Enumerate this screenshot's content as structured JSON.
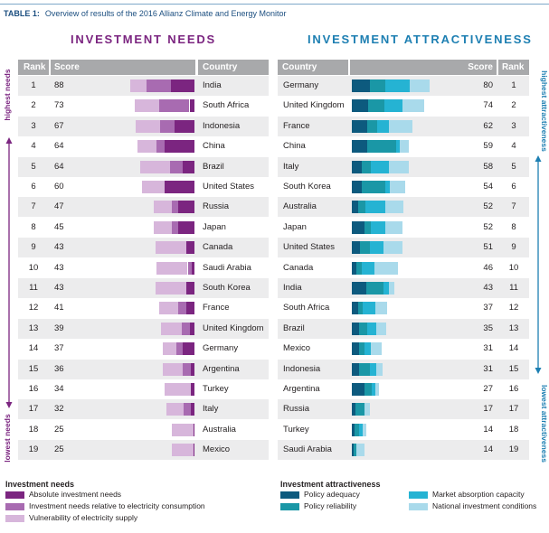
{
  "caption": {
    "label": "TABLE 1:",
    "text": "Overview of results of the 2016 Allianz Climate and Energy Monitor"
  },
  "colors": {
    "needs": [
      "#7b2580",
      "#a86bb1",
      "#d7b6db"
    ],
    "attractiveness": [
      "#0d5a7e",
      "#1a97a6",
      "#25b3d3",
      "#a9daeb"
    ],
    "header_bg": "#a8a9ab",
    "row_band": "#ececed",
    "needs_accent": "#7b2580",
    "attr_accent": "#1d7fb2"
  },
  "needs": {
    "title": "INVESTMENT NEEDS",
    "headers": {
      "rank": "Rank",
      "score": "Score",
      "country": "Country"
    },
    "side_top": "highest needs",
    "side_bottom": "lowest needs"
  },
  "attractiveness": {
    "title": "INVESTMENT ATTRACTIVENESS",
    "headers": {
      "country": "Country",
      "score": "Score",
      "rank": "Rank"
    },
    "side_top": "highest attractiveness",
    "side_bottom": "lowest attractiveness"
  },
  "legend": {
    "needs_title": "Investment needs",
    "needs_items": [
      "Absolute investment needs",
      "Investment needs relative to electricity consumption",
      "Vulnerability of electricity supply"
    ],
    "attr_title": "Investment attractiveness",
    "attr_items": [
      "Policy adequacy",
      "Policy reliability",
      "Market absorption capacity",
      "National investment conditions"
    ]
  },
  "chart_data": [
    {
      "type": "bar",
      "title": "INVESTMENT NEEDS",
      "orientation": "horizontal-stacked",
      "series_names": [
        "Absolute investment needs",
        "Investment needs relative to electricity consumption",
        "Vulnerability of electricity supply"
      ],
      "rows": [
        {
          "rank": 1,
          "score": 88,
          "country": "India",
          "segments": [
            38,
            40,
            27
          ]
        },
        {
          "rank": 2,
          "score": 73,
          "country": "South Africa",
          "segments": [
            8,
            49,
            40
          ]
        },
        {
          "rank": 3,
          "score": 67,
          "country": "Indonesia",
          "segments": [
            32,
            24,
            40
          ]
        },
        {
          "rank": 4,
          "score": 64,
          "country": "China",
          "segments": [
            48,
            14,
            30
          ]
        },
        {
          "rank": 5,
          "score": 64,
          "country": "Brazil",
          "segments": [
            19,
            21,
            48
          ]
        },
        {
          "rank": 6,
          "score": 60,
          "country": "United States",
          "segments": [
            48,
            0,
            37
          ]
        },
        {
          "rank": 7,
          "score": 47,
          "country": "Russia",
          "segments": [
            26,
            11,
            29
          ]
        },
        {
          "rank": 8,
          "score": 45,
          "country": "Japan",
          "segments": [
            27,
            10,
            29
          ]
        },
        {
          "rank": 9,
          "score": 43,
          "country": "Canada",
          "segments": [
            13,
            0,
            50
          ]
        },
        {
          "rank": 10,
          "score": 43,
          "country": "Saudi Arabia",
          "segments": [
            5,
            6,
            51
          ]
        },
        {
          "rank": 11,
          "score": 43,
          "country": "South Korea",
          "segments": [
            13,
            0,
            50
          ]
        },
        {
          "rank": 12,
          "score": 41,
          "country": "France",
          "segments": [
            13,
            13,
            31
          ]
        },
        {
          "rank": 13,
          "score": 39,
          "country": "United Kingdom",
          "segments": [
            8,
            12,
            34
          ]
        },
        {
          "rank": 14,
          "score": 37,
          "country": "Germany",
          "segments": [
            19,
            11,
            21
          ]
        },
        {
          "rank": 15,
          "score": 36,
          "country": "Argentina",
          "segments": [
            6,
            13,
            32
          ]
        },
        {
          "rank": 16,
          "score": 34,
          "country": "Turkey",
          "segments": [
            6,
            0,
            43
          ]
        },
        {
          "rank": 17,
          "score": 32,
          "country": "Italy",
          "segments": [
            6,
            11,
            29
          ]
        },
        {
          "rank": 18,
          "score": 25,
          "country": "Australia",
          "segments": [
            1,
            0,
            36
          ]
        },
        {
          "rank": 19,
          "score": 25,
          "country": "Mexico",
          "segments": [
            2,
            0,
            35
          ]
        }
      ]
    },
    {
      "type": "bar",
      "title": "INVESTMENT ATTRACTIVENESS",
      "orientation": "horizontal-stacked",
      "series_names": [
        "Policy adequacy",
        "Policy reliability",
        "Market absorption capacity",
        "National investment conditions"
      ],
      "rows": [
        {
          "country": "Germany",
          "score": 80,
          "rank": 1,
          "segments": [
            27,
            22,
            36,
            30
          ]
        },
        {
          "country": "United Kingdom",
          "score": 74,
          "rank": 2,
          "segments": [
            24,
            24,
            26,
            32
          ]
        },
        {
          "country": "France",
          "score": 62,
          "rank": 3,
          "segments": [
            22,
            15,
            18,
            34
          ]
        },
        {
          "country": "China",
          "score": 59,
          "rank": 4,
          "segments": [
            23,
            42,
            5,
            14
          ]
        },
        {
          "country": "Italy",
          "score": 58,
          "rank": 5,
          "segments": [
            15,
            13,
            27,
            29
          ]
        },
        {
          "country": "South Korea",
          "score": 54,
          "rank": 6,
          "segments": [
            15,
            34,
            7,
            23
          ]
        },
        {
          "country": "Australia",
          "score": 52,
          "rank": 7,
          "segments": [
            9,
            11,
            29,
            27
          ]
        },
        {
          "country": "Japan",
          "score": 52,
          "rank": 8,
          "segments": [
            18,
            10,
            21,
            26
          ]
        },
        {
          "country": "United States",
          "score": 51,
          "rank": 9,
          "segments": [
            12,
            15,
            19,
            28
          ]
        },
        {
          "country": "Canada",
          "score": 46,
          "rank": 10,
          "segments": [
            6,
            8,
            19,
            35
          ]
        },
        {
          "country": "India",
          "score": 43,
          "rank": 11,
          "segments": [
            21,
            26,
            8,
            7
          ]
        },
        {
          "country": "South Africa",
          "score": 37,
          "rank": 12,
          "segments": [
            9,
            7,
            19,
            17
          ]
        },
        {
          "country": "Brazil",
          "score": 35,
          "rank": 13,
          "segments": [
            11,
            11,
            14,
            14
          ]
        },
        {
          "country": "Mexico",
          "score": 31,
          "rank": 14,
          "segments": [
            10,
            8,
            10,
            16
          ]
        },
        {
          "country": "Indonesia",
          "score": 31,
          "rank": 15,
          "segments": [
            10,
            16,
            10,
            9
          ]
        },
        {
          "country": "Argentina",
          "score": 27,
          "rank": 16,
          "segments": [
            19,
            10,
            5,
            6
          ]
        },
        {
          "country": "Russia",
          "score": 17,
          "rank": 17,
          "segments": [
            5,
            14,
            0,
            7
          ]
        },
        {
          "country": "Turkey",
          "score": 14,
          "rank": 18,
          "segments": [
            4,
            6,
            6,
            5
          ]
        },
        {
          "country": "Saudi Arabia",
          "score": 14,
          "rank": 19,
          "segments": [
            2,
            5,
            0,
            12
          ]
        }
      ]
    }
  ]
}
